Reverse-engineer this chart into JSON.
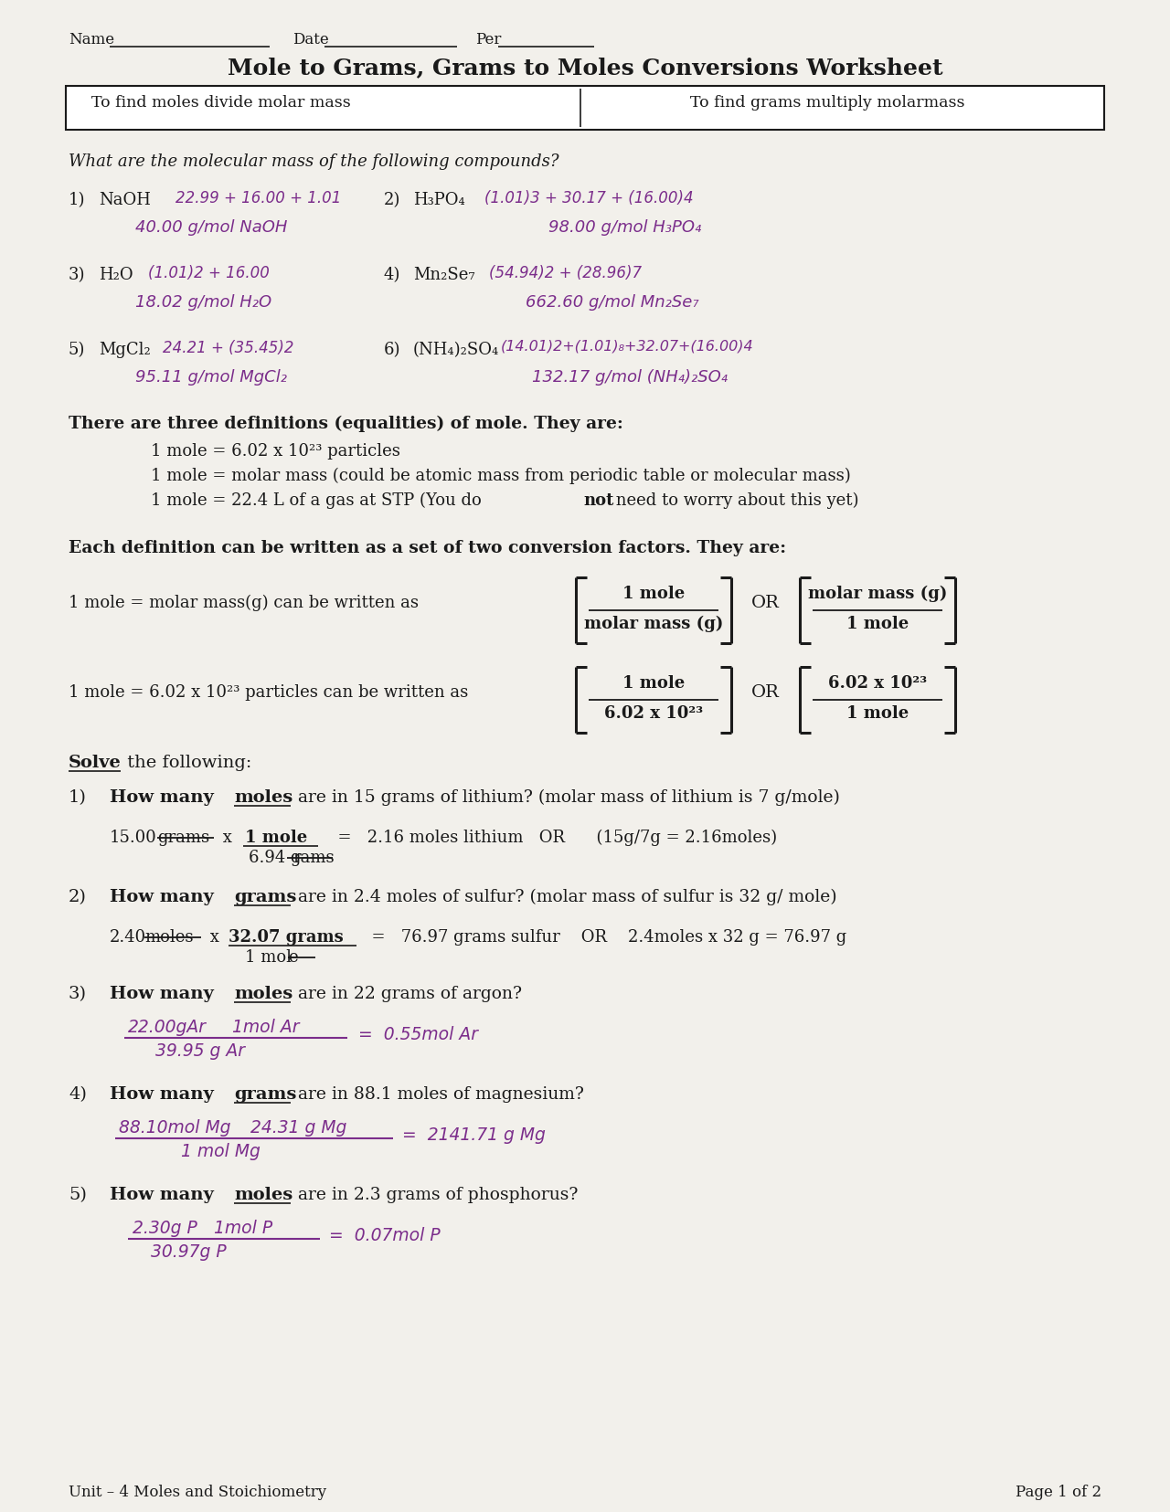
{
  "bg_color": "#f2f0eb",
  "text_color": "#1a1a1a",
  "handwriting_color": "#7b2d8b",
  "title": "Mole to Grams, Grams to Moles Conversions Worksheet",
  "box_text_left": "To find moles divide molar mass",
  "box_text_right": "To find grams multiply molarmass",
  "italic_q": "What are the molecular mass of the following compounds?",
  "definitions_header": "There are three definitions (equalities) of mole. They are:",
  "definitions": [
    "1 mole = 6.02 x 10²³ particles",
    "1 mole = molar mass (could be atomic mass from periodic table or molecular mass)",
    "1 mole = 22.4 L of a gas at STP (You do not need to worry about this yet)"
  ],
  "conv_header": "Each definition can be written as a set of two conversion factors. They are:",
  "conv1_label": "1 mole = molar mass(g) can be written as",
  "conv1_frac1_top": "1 mole",
  "conv1_frac1_bot": "molar mass (g)",
  "conv1_frac2_top": "molar mass (g)",
  "conv1_frac2_bot": "1 mole",
  "conv2_label": "1 mole = 6.02 x 10²³ particles can be written as",
  "conv2_frac1_top": "1 mole",
  "conv2_frac1_bot": "6.02 x 10²³",
  "conv2_frac2_top": "6.02 x 10²³",
  "conv2_frac2_bot": "1 mole",
  "footer_left": "Unit – 4 Moles and Stoichiometry",
  "footer_right": "Page 1 of 2"
}
